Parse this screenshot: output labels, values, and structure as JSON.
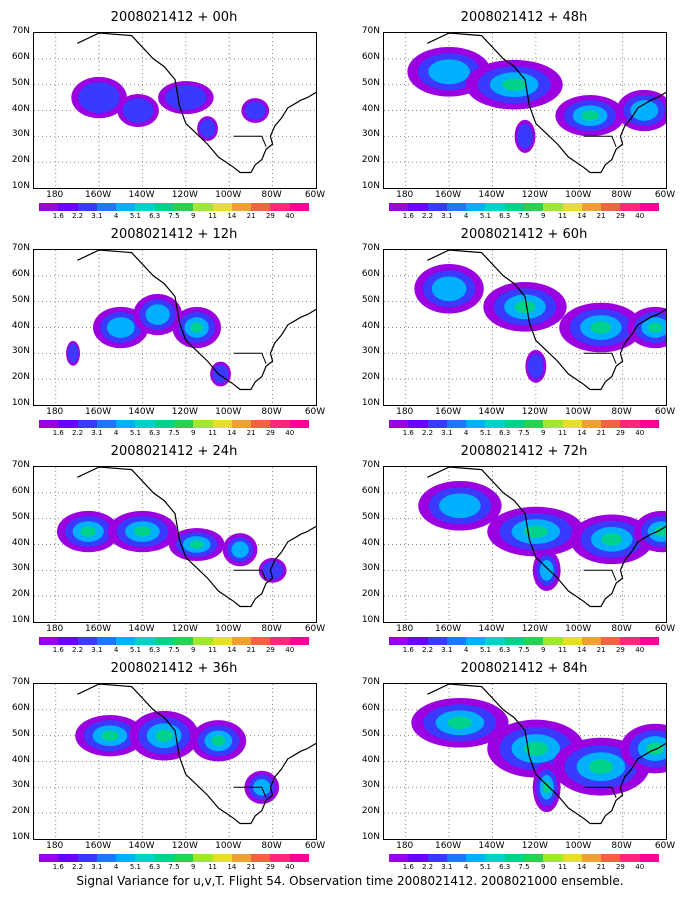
{
  "footer": "Signal Variance for u,v,T. Flight 54. Observation time 2008021412. 2008021000 ensemble.",
  "lat_labels": [
    "70N",
    "60N",
    "50N",
    "40N",
    "30N",
    "20N",
    "10N"
  ],
  "lon_labels": [
    "180",
    "160W",
    "140W",
    "120W",
    "100W",
    "80W",
    "60W"
  ],
  "colorbar": {
    "labels": [
      "1.6",
      "2.2",
      "3.1",
      "4",
      "5.1",
      "6.3",
      "7.5",
      "9",
      "11",
      "14",
      "21",
      "29",
      "40"
    ],
    "colors": [
      "#9b00e0",
      "#6a00ff",
      "#3a3aff",
      "#1e78ff",
      "#00b0ff",
      "#00d2c8",
      "#00d28c",
      "#28d250",
      "#a0e632",
      "#e6dc32",
      "#f0a032",
      "#f06440",
      "#ff2878",
      "#ff0096"
    ]
  },
  "panels": [
    {
      "title": "2008021412 + 00h",
      "blobs": [
        [
          30,
          45,
          8,
          5,
          0
        ],
        [
          48,
          40,
          6,
          4,
          0
        ],
        [
          70,
          45,
          8,
          4,
          0
        ],
        [
          80,
          33,
          3,
          3,
          0
        ],
        [
          102,
          40,
          4,
          3,
          0
        ]
      ]
    },
    {
      "title": "2008021412 + 12h",
      "blobs": [
        [
          40,
          40,
          8,
          5,
          1
        ],
        [
          75,
          40,
          7,
          5,
          2
        ],
        [
          86,
          22,
          3,
          3,
          0
        ],
        [
          57,
          45,
          7,
          5,
          1
        ],
        [
          18,
          30,
          2,
          3,
          0
        ]
      ]
    },
    {
      "title": "2008021412 + 24h",
      "blobs": [
        [
          25,
          45,
          9,
          5,
          2
        ],
        [
          50,
          45,
          10,
          5,
          2
        ],
        [
          75,
          40,
          8,
          4,
          2
        ],
        [
          95,
          38,
          5,
          4,
          1
        ],
        [
          110,
          30,
          4,
          3,
          0
        ]
      ]
    },
    {
      "title": "2008021412 + 36h",
      "blobs": [
        [
          35,
          50,
          10,
          5,
          2
        ],
        [
          60,
          50,
          10,
          6,
          2
        ],
        [
          85,
          48,
          8,
          5,
          2
        ],
        [
          105,
          30,
          5,
          4,
          1
        ]
      ]
    },
    {
      "title": "2008021412 + 48h",
      "blobs": [
        [
          30,
          55,
          12,
          6,
          1
        ],
        [
          60,
          50,
          14,
          6,
          2
        ],
        [
          95,
          38,
          10,
          5,
          3
        ],
        [
          120,
          40,
          8,
          5,
          1
        ],
        [
          65,
          30,
          3,
          4,
          0
        ]
      ]
    },
    {
      "title": "2008021412 + 60h",
      "blobs": [
        [
          30,
          55,
          10,
          6,
          1
        ],
        [
          65,
          48,
          12,
          6,
          3
        ],
        [
          100,
          40,
          12,
          6,
          3
        ],
        [
          125,
          40,
          8,
          5,
          4
        ],
        [
          70,
          25,
          3,
          4,
          0
        ]
      ]
    },
    {
      "title": "2008021412 + 72h",
      "blobs": [
        [
          35,
          55,
          12,
          6,
          1
        ],
        [
          70,
          45,
          14,
          6,
          3
        ],
        [
          105,
          42,
          12,
          6,
          3
        ],
        [
          128,
          45,
          8,
          5,
          4
        ],
        [
          75,
          30,
          4,
          5,
          1
        ]
      ]
    },
    {
      "title": "2008021412 + 84h",
      "blobs": [
        [
          35,
          55,
          14,
          6,
          2
        ],
        [
          70,
          45,
          14,
          7,
          3
        ],
        [
          100,
          38,
          14,
          7,
          4
        ],
        [
          125,
          45,
          10,
          6,
          3
        ],
        [
          75,
          30,
          4,
          6,
          2
        ]
      ]
    }
  ]
}
